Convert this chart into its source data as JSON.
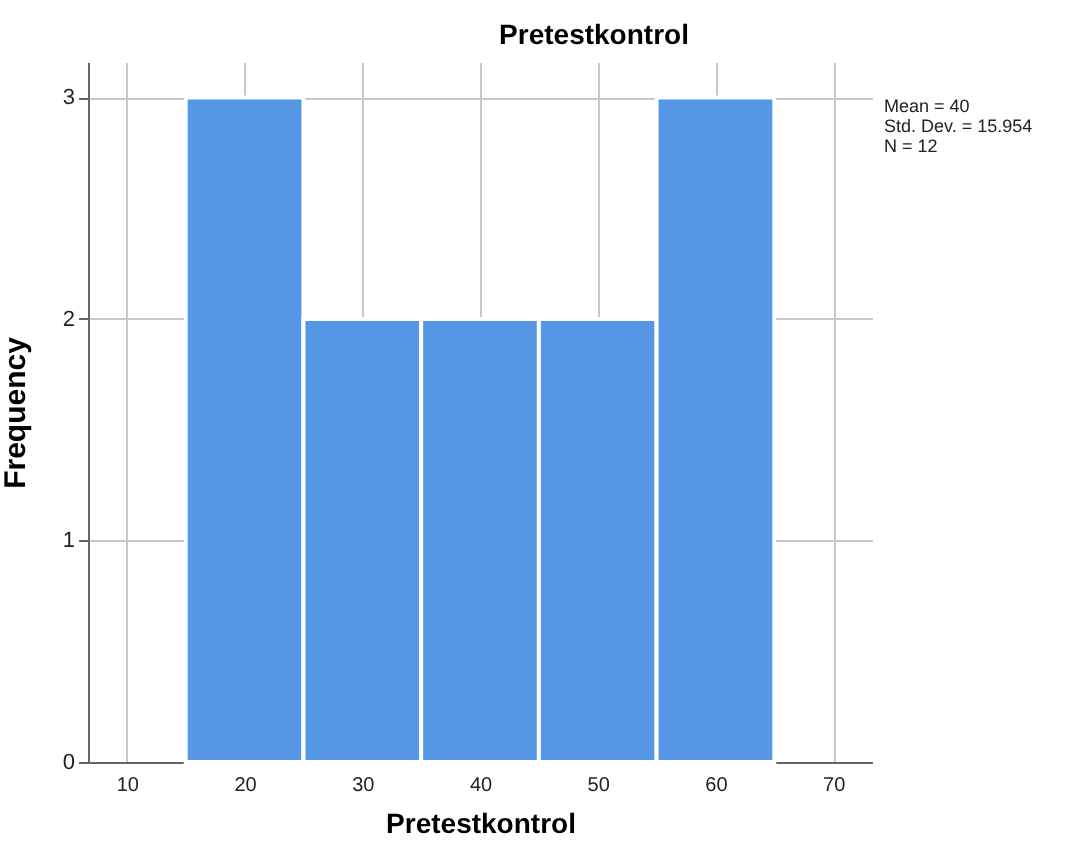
{
  "chart_data": {
    "type": "histogram",
    "title": "Pretestkontrol",
    "xlabel": "Pretestkontrol",
    "ylabel": "Frequency",
    "bins": [
      15,
      25,
      35,
      45,
      55,
      65
    ],
    "values": [
      3,
      2,
      2,
      2,
      3
    ],
    "color": "#5596e5",
    "xlim": [
      6.7,
      73.3
    ],
    "xticks": [
      10,
      20,
      30,
      40,
      50,
      60,
      70
    ],
    "ylim": [
      0,
      3.16
    ],
    "yticks": [
      0,
      1,
      2,
      3
    ],
    "grid": true,
    "annotations": [
      "Mean = 40",
      "Std. Dev. = 15.954",
      "N = 12"
    ]
  }
}
